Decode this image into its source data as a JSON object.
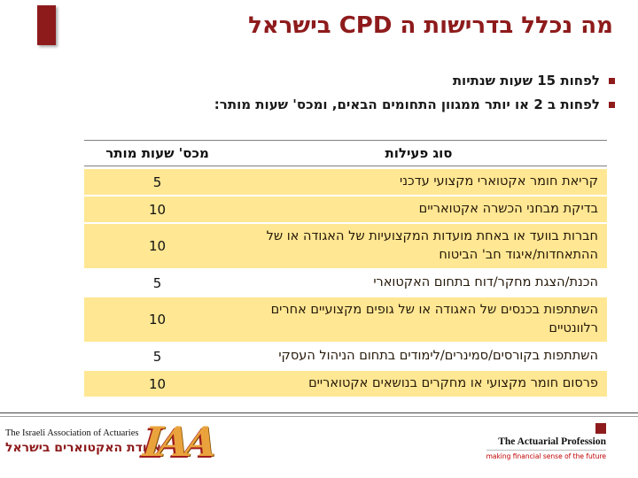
{
  "title": "מה נכלל בדרישות ה CPD בישראל",
  "bullets": [
    "לפחות 15 שעות שנתיות",
    "לפחות ב 2 או יותר ממגוון התחומים הבאים, ומכס' שעות מותר:"
  ],
  "table": {
    "headers": {
      "activity": "סוג פעילות",
      "hours": "מכס' שעות מותר"
    },
    "rows": [
      {
        "activity": "קריאת חומר אקטוארי מקצועי עדכני",
        "hours": "5",
        "highlight": true
      },
      {
        "activity": "בדיקת מבחני הכשרה אקטואריים",
        "hours": "10",
        "highlight": true
      },
      {
        "activity": "חברות בוועד או באחת מועדות המקצועיות של האגודה או של ההתאחדות/איגוד חב' הביטוח",
        "hours": "10",
        "highlight": true
      },
      {
        "activity": "הכנת/הצגת מחקר/דוח בתחום האקטוארי",
        "hours": "5",
        "highlight": false
      },
      {
        "activity": "השתתפות בכנסים של האגודה או של גופים מקצועיים אחרים רלוונטיים",
        "hours": "10",
        "highlight": true
      },
      {
        "activity": "השתתפות בקורסים/סמינרים/לימודים בתחום הניהול העסקי",
        "hours": "5",
        "highlight": false
      },
      {
        "activity": "פרסום חומר מקצועי או מחקרים בנושאים אקטואריים",
        "hours": "10",
        "highlight": true
      }
    ]
  },
  "footer": {
    "left_org_en": "The Israeli Association of Actuaries",
    "left_org_he": "אגודת האקטוארים בישראל",
    "iaa_logo": "IAA",
    "right_org": "The Actuarial Profession",
    "right_tagline": "making financial sense of the future"
  },
  "colors": {
    "accent_red": "#8E1B1C",
    "row_highlight": "#FFE793",
    "tagline_red": "#C00000",
    "logo_gold": "#EAA33C"
  }
}
